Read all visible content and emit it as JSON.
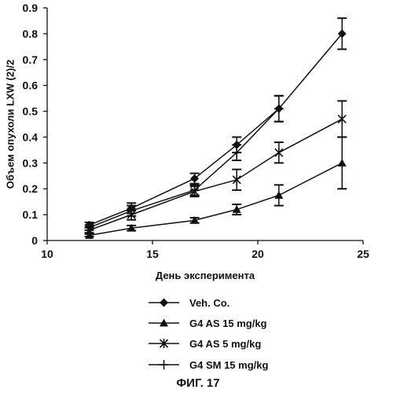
{
  "chart_data": {
    "type": "line",
    "xlabel": "День эксперимента",
    "ylabel": "Объем опухоли LXW (2)/2",
    "caption": "ФИГ. 17",
    "xlim": [
      10,
      25
    ],
    "ylim": [
      0,
      0.9
    ],
    "xticks": [
      10,
      15,
      20,
      25
    ],
    "xtick_labels": [
      "10",
      "15",
      "20",
      "25"
    ],
    "yticks": [
      0,
      0.1,
      0.2,
      0.3,
      0.4,
      0.5,
      0.6,
      0.7,
      0.8,
      0.9
    ],
    "ytick_labels": [
      "0",
      "0.1",
      "0.2",
      "0.3",
      "0.4",
      "0.5",
      "0.6",
      "0.7",
      "0.8",
      "0.9"
    ],
    "grid": false,
    "legend_position": "bottom",
    "series": [
      {
        "name": "Veh. Co.",
        "marker": "diamond",
        "x": [
          12,
          14,
          17,
          19,
          21,
          24
        ],
        "y": [
          0.06,
          0.125,
          0.24,
          0.37,
          0.51,
          0.8
        ],
        "err": [
          0.01,
          0.02,
          0.02,
          0.03,
          0.05,
          0.06
        ]
      },
      {
        "name": "G4 AS 15 mg/kg",
        "marker": "triangle",
        "x": [
          12,
          14,
          17,
          19,
          21,
          24
        ],
        "y": [
          0.02,
          0.048,
          0.078,
          0.12,
          0.175,
          0.3
        ],
        "err": [
          0.005,
          0.01,
          0.01,
          0.02,
          0.04,
          0.1
        ]
      },
      {
        "name": "G4 AS 5 mg/kg",
        "marker": "asterisk",
        "x": [
          12,
          14,
          17,
          19,
          21,
          24
        ],
        "y": [
          0.04,
          0.1,
          0.19,
          0.235,
          0.34,
          0.47
        ],
        "err": [
          0.01,
          0.02,
          0.02,
          0.04,
          0.04,
          0.07
        ]
      },
      {
        "name": "G4 SM 15 mg/kg",
        "marker": "plus",
        "x": [
          12,
          14,
          17,
          19,
          21
        ],
        "y": [
          0.05,
          0.115,
          0.195,
          0.34,
          0.51
        ],
        "err": [
          0.01,
          0.02,
          0.02,
          0.03,
          0.05
        ]
      }
    ]
  }
}
